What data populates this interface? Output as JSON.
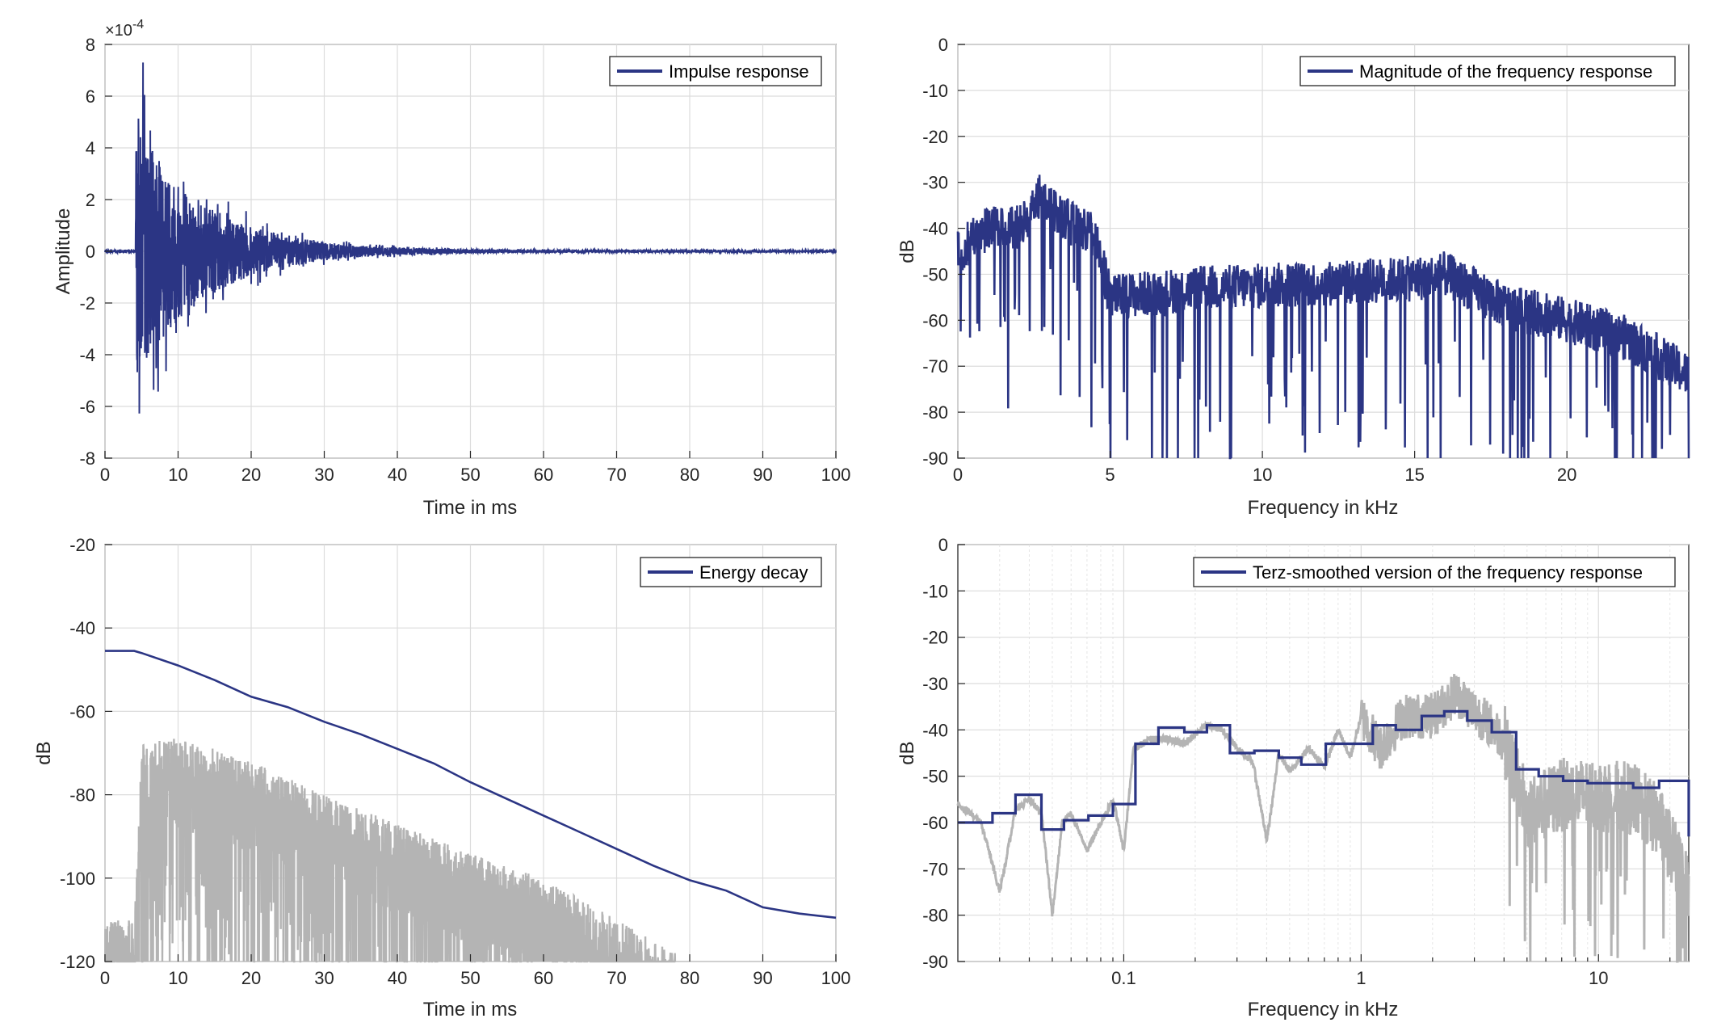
{
  "colors": {
    "main": "#2b3584",
    "gray": "#b4b4b4",
    "axis": "#262626",
    "grid": "#dcdcdc"
  },
  "chart_data": [
    {
      "type": "line",
      "id": "impulse",
      "title": "",
      "xlabel": "Time in ms",
      "ylabel": "Amplitude",
      "xlim": [
        0,
        100
      ],
      "ylim": [
        -8,
        8
      ],
      "y_multiplier_label": "×10",
      "y_multiplier_exponent": "-4",
      "xticks": [
        0,
        10,
        20,
        30,
        40,
        50,
        60,
        70,
        80,
        90,
        100
      ],
      "yticks": [
        -8,
        -6,
        -4,
        -2,
        0,
        2,
        4,
        6,
        8
      ],
      "legend": "top-right",
      "series": [
        {
          "name": "Impulse response",
          "color": "#2b3584",
          "description_points": {
            "onset_ms": 4.2,
            "peak_ms": 5.2,
            "peak_value": 7.3,
            "min_value": -7.0,
            "decay_end_ms": 55
          }
        }
      ]
    },
    {
      "type": "line",
      "id": "magnitude",
      "title": "",
      "xlabel": "Frequency in kHz",
      "ylabel": "dB",
      "xlim": [
        0,
        24
      ],
      "ylim": [
        -90,
        0
      ],
      "xticks": [
        0,
        5,
        10,
        15,
        20
      ],
      "yticks": [
        0,
        -10,
        -20,
        -30,
        -40,
        -50,
        -60,
        -70,
        -80,
        -90
      ],
      "legend": "top-right",
      "series": [
        {
          "name": "Magnitude of the frequency response",
          "color": "#2b3584",
          "envelope": {
            "x": [
              0,
              1,
              2,
              2.7,
              3.5,
              4.5,
              5,
              8,
              12,
              15,
              16,
              18,
              20,
              22,
              24
            ],
            "y": [
              -45,
              -40,
              -40,
              -33,
              -38,
              -42,
              -55,
              -53,
              -52,
              -51,
              -50,
              -57,
              -60,
              -64,
              -72
            ]
          }
        }
      ]
    },
    {
      "type": "line",
      "id": "energy",
      "title": "",
      "xlabel": "Time in ms",
      "ylabel": "dB",
      "xlim": [
        0,
        100
      ],
      "ylim": [
        -120,
        -20
      ],
      "xticks": [
        0,
        10,
        20,
        30,
        40,
        50,
        60,
        70,
        80,
        90,
        100
      ],
      "yticks": [
        -20,
        -40,
        -60,
        -80,
        -100,
        -120
      ],
      "legend": "top-right",
      "series": [
        {
          "name": "Energy decay",
          "color": "#2b3584",
          "x": [
            0,
            4,
            5,
            10,
            15,
            20,
            25,
            30,
            35,
            40,
            45,
            50,
            55,
            60,
            65,
            70,
            75,
            80,
            85,
            90,
            95,
            100
          ],
          "y": [
            -45.5,
            -45.5,
            -46,
            -49,
            -52.5,
            -56.5,
            -59,
            -62.5,
            -65.5,
            -69,
            -72.5,
            -77,
            -81,
            -85,
            -89,
            -93,
            -97,
            -100.5,
            -103,
            -107,
            -108.5,
            -109.5
          ]
        },
        {
          "name": "",
          "color": "#b4b4b4",
          "envelope": {
            "x": [
              0,
              4,
              5,
              10,
              20,
              30,
              40,
              50,
              60,
              70,
              78
            ],
            "y": [
              -110,
              -110,
              -68,
              -66,
              -72,
              -80,
              -87,
              -94,
              -100,
              -110,
              -118
            ]
          }
        }
      ]
    },
    {
      "type": "line",
      "id": "terz",
      "title": "",
      "xlabel": "Frequency in kHz",
      "ylabel": "dB",
      "xscale": "log",
      "xlim": [
        0.02,
        24
      ],
      "ylim": [
        -90,
        0
      ],
      "xticks": [
        0.1,
        1,
        10
      ],
      "xticklabels": [
        "0.1",
        "1",
        "10"
      ],
      "yticks": [
        0,
        -10,
        -20,
        -30,
        -40,
        -50,
        -60,
        -70,
        -80,
        -90
      ],
      "legend": "top-right",
      "series": [
        {
          "name": "Terz-smoothed version of the frequency response",
          "color": "#2b3584",
          "step_edges": [
            0.02,
            0.028,
            0.035,
            0.045,
            0.056,
            0.071,
            0.09,
            0.112,
            0.14,
            0.18,
            0.224,
            0.28,
            0.355,
            0.45,
            0.56,
            0.71,
            0.9,
            1.12,
            1.4,
            1.8,
            2.24,
            2.8,
            3.55,
            4.5,
            5.6,
            7.1,
            9,
            11.2,
            14,
            18,
            24
          ],
          "step_values": [
            -60,
            -58,
            -54,
            -61.5,
            -59.5,
            -58.5,
            -56,
            -43,
            -39.5,
            -40.5,
            -39,
            -45,
            -44.5,
            -46,
            -47.5,
            -43,
            -43,
            -39,
            -40,
            -37,
            -36,
            -38,
            -40.5,
            -48.5,
            -50,
            -51,
            -51.5,
            -51.5,
            -52.5,
            -51,
            -63
          ]
        },
        {
          "name": "",
          "color": "#b4b4b4",
          "x": [
            0.02,
            0.025,
            0.03,
            0.035,
            0.04,
            0.045,
            0.05,
            0.055,
            0.06,
            0.07,
            0.08,
            0.09,
            0.1,
            0.11,
            0.13,
            0.15,
            0.18,
            0.22,
            0.26,
            0.3,
            0.35,
            0.4,
            0.45,
            0.5,
            0.6,
            0.7,
            0.8,
            0.9,
            1.0,
            1.2,
            1.5,
            2.0,
            2.5,
            3.0,
            3.5,
            4.0,
            5.0,
            7.0,
            10.0,
            14.0,
            18.0,
            24.0
          ],
          "y": [
            -56,
            -60,
            -75,
            -57,
            -55,
            -58,
            -80,
            -60,
            -58,
            -66,
            -60,
            -55,
            -66,
            -44,
            -42,
            -42,
            -43,
            -39,
            -40,
            -44,
            -47,
            -64,
            -45,
            -49,
            -44,
            -48,
            -40,
            -46,
            -37,
            -44,
            -37,
            -37,
            -32,
            -36,
            -39,
            -42,
            -58,
            -54,
            -54,
            -55,
            -60,
            -75
          ]
        }
      ]
    }
  ]
}
